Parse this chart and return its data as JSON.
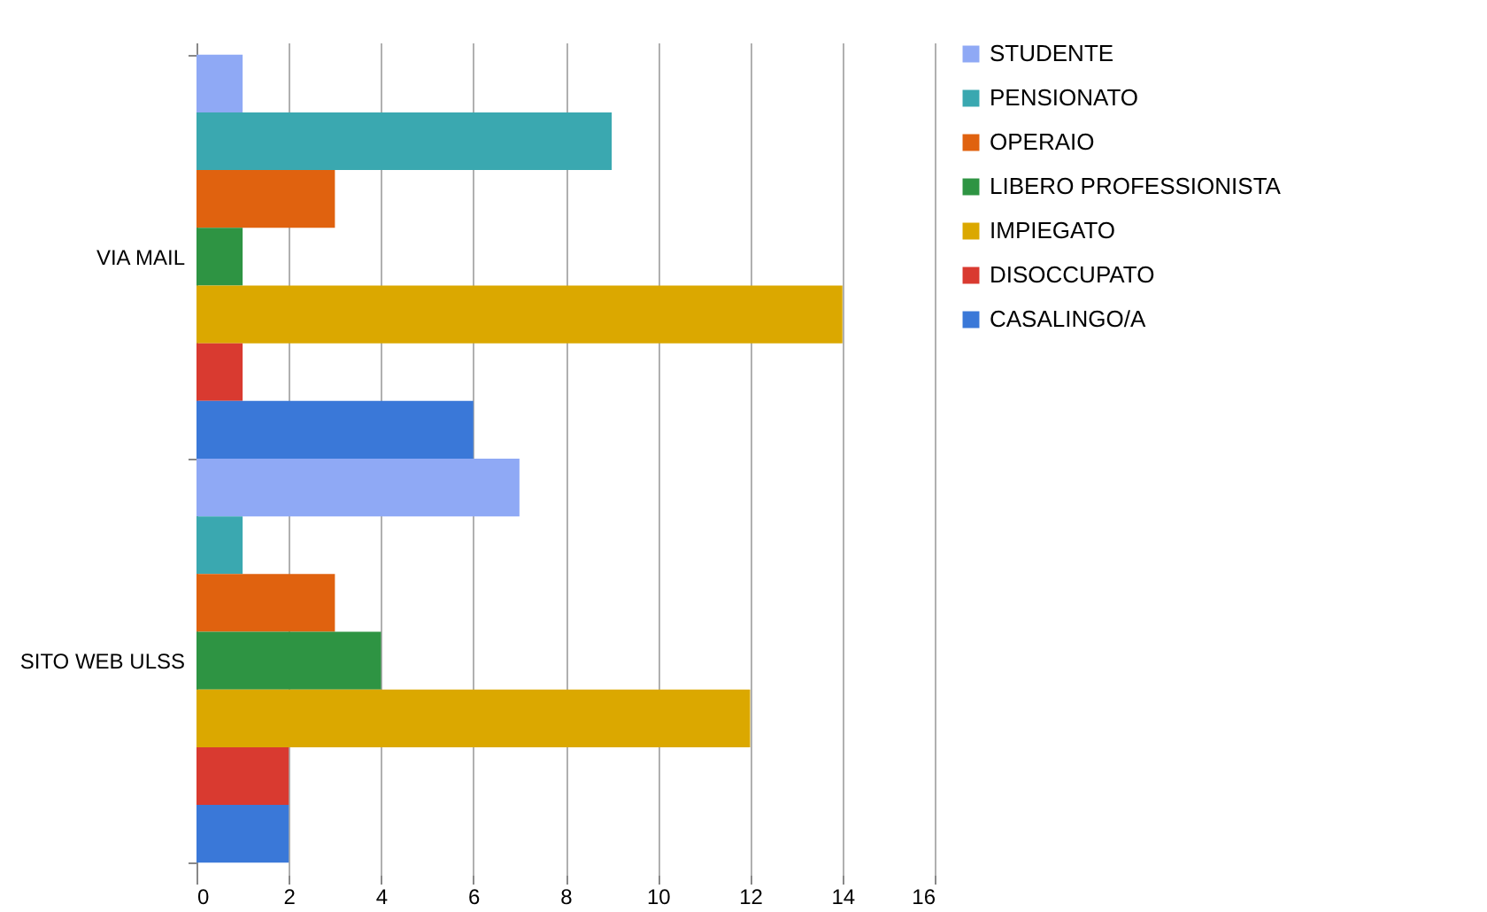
{
  "chart_data": {
    "type": "bar",
    "orientation": "horizontal",
    "categories": [
      "VIA MAIL",
      "SITO WEB ULSS"
    ],
    "series": [
      {
        "name": "STUDENTE",
        "color": "#8fa9f5",
        "values": [
          1,
          7
        ]
      },
      {
        "name": "PENSIONATO",
        "color": "#3aa8b0",
        "values": [
          9,
          1
        ]
      },
      {
        "name": "OPERAIO",
        "color": "#e0620f",
        "values": [
          3,
          3
        ]
      },
      {
        "name": "LIBERO PROFESSIONISTA",
        "color": "#2e9443",
        "values": [
          1,
          4
        ]
      },
      {
        "name": "IMPIEGATO",
        "color": "#dba800",
        "values": [
          14,
          12
        ]
      },
      {
        "name": "DISOCCUPATO",
        "color": "#d93a30",
        "values": [
          1,
          2
        ]
      },
      {
        "name": "CASALINGO/A",
        "color": "#3a78d8",
        "values": [
          6,
          2
        ]
      }
    ],
    "xlim": [
      0,
      16
    ],
    "xticks": [
      0,
      2,
      4,
      6,
      8,
      10,
      12,
      14,
      16
    ],
    "grid": "x",
    "legend": "right"
  }
}
